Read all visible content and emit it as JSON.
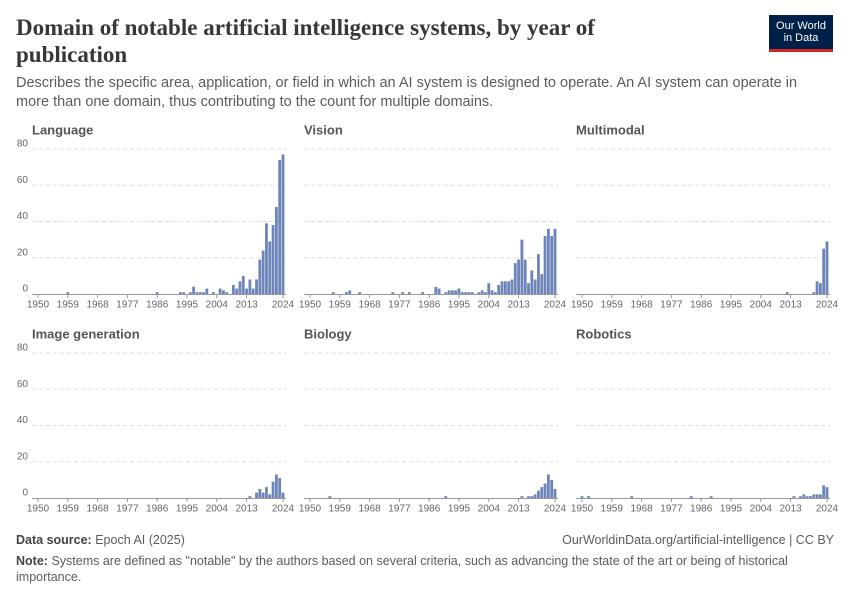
{
  "title": "Domain of notable artificial intelligence systems, by year of publication",
  "subtitle": "Describes the specific area, application, or field in which an AI system is designed to operate. An AI system can operate in more than one domain, thus contributing to the count for multiple domains.",
  "logo": "Our World in Data",
  "source_label": "Data source:",
  "source": "Epoch AI (2025)",
  "url": "OurWorldinData.org/artificial-intelligence | CC BY",
  "note_label": "Note:",
  "note": "Systems are defined as \"notable\" by the authors based on several criteria, such as advancing the state of the art or being of historical importance.",
  "chart_data": [
    {
      "type": "bar",
      "title": "Language",
      "color": "#6d85b8",
      "x": [
        1959,
        1986,
        1993,
        1994,
        1996,
        1997,
        1998,
        1999,
        2000,
        2001,
        2003,
        2005,
        2006,
        2007,
        2009,
        2010,
        2011,
        2012,
        2013,
        2014,
        2015,
        2016,
        2017,
        2018,
        2019,
        2020,
        2021,
        2022,
        2023,
        2024
      ],
      "values": [
        1,
        1,
        1,
        1,
        1,
        4,
        1,
        1,
        1,
        3,
        1,
        3,
        2,
        1,
        5,
        3,
        7,
        10,
        3,
        8,
        3,
        8,
        19,
        24,
        39,
        29,
        38,
        48,
        74,
        77
      ],
      "xlim": [
        1950,
        2024
      ],
      "xticks": [
        1950,
        1959,
        1968,
        1977,
        1986,
        1995,
        2004,
        2013,
        2024
      ],
      "ylim": [
        0,
        80
      ],
      "yticks": [
        0,
        20,
        40,
        60,
        80
      ],
      "grid": true
    },
    {
      "type": "bar",
      "title": "Vision",
      "color": "#6d85b8",
      "x": [
        1957,
        1961,
        1962,
        1965,
        1975,
        1978,
        1980,
        1984,
        1988,
        1989,
        1991,
        1992,
        1993,
        1994,
        1995,
        1996,
        1997,
        1998,
        1999,
        2001,
        2002,
        2003,
        2004,
        2005,
        2006,
        2007,
        2008,
        2009,
        2010,
        2011,
        2012,
        2013,
        2014,
        2015,
        2016,
        2017,
        2018,
        2019,
        2020,
        2021,
        2022,
        2023,
        2024
      ],
      "values": [
        1,
        1,
        2,
        1,
        1,
        1,
        1,
        1,
        4,
        3,
        1,
        2,
        2,
        2,
        3,
        1,
        1,
        1,
        1,
        1,
        2,
        1,
        6,
        2,
        1,
        5,
        7,
        7,
        7,
        8,
        17,
        19,
        30,
        19,
        6,
        13,
        8,
        22,
        11,
        32,
        36,
        32,
        36
      ],
      "xlim": [
        1950,
        2024
      ],
      "xticks": [
        1950,
        1959,
        1968,
        1977,
        1986,
        1995,
        2004,
        2013,
        2024
      ],
      "ylim": [
        0,
        80
      ],
      "yticks": [
        0,
        20,
        40,
        60,
        80
      ],
      "grid": true
    },
    {
      "type": "bar",
      "title": "Multimodal",
      "color": "#6d85b8",
      "x": [
        2012,
        2020,
        2021,
        2022,
        2023,
        2024
      ],
      "values": [
        1,
        1,
        7,
        6,
        25,
        29
      ],
      "xlim": [
        1950,
        2024
      ],
      "xticks": [
        1950,
        1959,
        1968,
        1977,
        1986,
        1995,
        2004,
        2013,
        2024
      ],
      "ylim": [
        0,
        80
      ],
      "yticks": [
        0,
        20,
        40,
        60,
        80
      ],
      "grid": true
    },
    {
      "type": "bar",
      "title": "Image generation",
      "color": "#6d85b8",
      "x": [
        2014,
        2016,
        2017,
        2018,
        2019,
        2020,
        2021,
        2022,
        2023,
        2024
      ],
      "values": [
        1,
        3,
        5,
        3,
        6,
        2,
        9,
        13,
        11,
        3
      ],
      "xlim": [
        1950,
        2024
      ],
      "xticks": [
        1950,
        1959,
        1968,
        1977,
        1986,
        1995,
        2004,
        2013,
        2024
      ],
      "ylim": [
        0,
        80
      ],
      "yticks": [
        0,
        20,
        40,
        60,
        80
      ],
      "grid": true
    },
    {
      "type": "bar",
      "title": "Biology",
      "color": "#6d85b8",
      "x": [
        1956,
        1991,
        2014,
        2016,
        2017,
        2018,
        2019,
        2020,
        2021,
        2022,
        2023,
        2024
      ],
      "values": [
        1,
        1,
        1,
        1,
        1,
        2,
        4,
        6,
        8,
        13,
        10,
        5
      ],
      "xlim": [
        1950,
        2024
      ],
      "xticks": [
        1950,
        1959,
        1968,
        1977,
        1986,
        1995,
        2004,
        2013,
        2024
      ],
      "ylim": [
        0,
        80
      ],
      "yticks": [
        0,
        20,
        40,
        60,
        80
      ],
      "grid": true
    },
    {
      "type": "bar",
      "title": "Robotics",
      "color": "#6d85b8",
      "x": [
        1950,
        1952,
        1965,
        1983,
        1989,
        2014,
        2016,
        2017,
        2018,
        2019,
        2020,
        2021,
        2022,
        2023,
        2024
      ],
      "values": [
        1,
        1,
        1,
        1,
        1,
        1,
        1,
        2,
        1,
        1,
        2,
        2,
        2,
        7,
        6
      ],
      "xlim": [
        1950,
        2024
      ],
      "xticks": [
        1950,
        1959,
        1968,
        1977,
        1986,
        1995,
        2004,
        2013,
        2024
      ],
      "ylim": [
        0,
        80
      ],
      "yticks": [
        0,
        20,
        40,
        60,
        80
      ],
      "grid": true
    }
  ]
}
